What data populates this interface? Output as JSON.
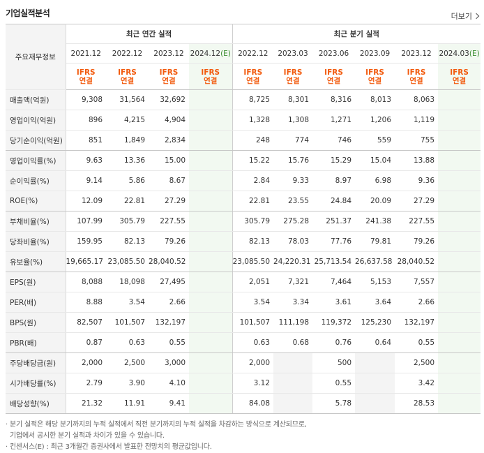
{
  "title": "기업실적분석",
  "more_label": "더보기",
  "header": {
    "row_label": "주요재무정보",
    "annual_group": "최근 연간 실적",
    "quarter_group": "최근 분기 실적",
    "annual_periods": [
      "2021.12",
      "2022.12",
      "2023.12",
      "2024.12"
    ],
    "annual_est_suffix": "(E)",
    "quarter_periods": [
      "2022.12",
      "2023.03",
      "2023.06",
      "2023.09",
      "2023.12",
      "2024.03"
    ],
    "quarter_est_suffix": "(E)",
    "ifrs_line1": "IFRS",
    "ifrs_line2": "연결"
  },
  "rows": [
    {
      "label": "매출액(억원)",
      "annual": [
        "9,308",
        "31,564",
        "32,692",
        ""
      ],
      "quarter": [
        "8,725",
        "8,301",
        "8,316",
        "8,013",
        "8,063",
        ""
      ]
    },
    {
      "label": "영업이익(억원)",
      "annual": [
        "896",
        "4,215",
        "4,904",
        ""
      ],
      "quarter": [
        "1,328",
        "1,308",
        "1,271",
        "1,206",
        "1,119",
        ""
      ]
    },
    {
      "label": "당기순이익(억원)",
      "annual": [
        "851",
        "1,849",
        "2,834",
        ""
      ],
      "quarter": [
        "248",
        "774",
        "746",
        "559",
        "755",
        ""
      ]
    },
    {
      "label": "영업이익률(%)",
      "annual": [
        "9.63",
        "13.36",
        "15.00",
        ""
      ],
      "quarter": [
        "15.22",
        "15.76",
        "15.29",
        "15.04",
        "13.88",
        ""
      ]
    },
    {
      "label": "순이익률(%)",
      "annual": [
        "9.14",
        "5.86",
        "8.67",
        ""
      ],
      "quarter": [
        "2.84",
        "9.33",
        "8.97",
        "6.98",
        "9.36",
        ""
      ]
    },
    {
      "label": "ROE(%)",
      "annual": [
        "12.09",
        "22.81",
        "27.29",
        ""
      ],
      "quarter": [
        "22.81",
        "23.55",
        "24.84",
        "20.09",
        "27.29",
        ""
      ]
    },
    {
      "label": "부채비율(%)",
      "annual": [
        "107.99",
        "305.79",
        "227.55",
        ""
      ],
      "quarter": [
        "305.79",
        "275.28",
        "251.37",
        "241.38",
        "227.55",
        ""
      ]
    },
    {
      "label": "당좌비율(%)",
      "annual": [
        "159.95",
        "82.13",
        "79.26",
        ""
      ],
      "quarter": [
        "82.13",
        "78.03",
        "77.76",
        "79.81",
        "79.26",
        ""
      ]
    },
    {
      "label": "유보율(%)",
      "annual": [
        "19,665.17",
        "23,085.50",
        "28,040.52",
        ""
      ],
      "quarter": [
        "23,085.50",
        "24,220.31",
        "25,713.54",
        "26,637.58",
        "28,040.52",
        ""
      ]
    },
    {
      "label": "EPS(원)",
      "annual": [
        "8,088",
        "18,098",
        "27,495",
        ""
      ],
      "quarter": [
        "2,051",
        "7,321",
        "7,464",
        "5,153",
        "7,557",
        ""
      ]
    },
    {
      "label": "PER(배)",
      "annual": [
        "8.88",
        "3.54",
        "2.66",
        ""
      ],
      "quarter": [
        "3.54",
        "3.34",
        "3.61",
        "3.64",
        "2.66",
        ""
      ]
    },
    {
      "label": "BPS(원)",
      "annual": [
        "82,507",
        "101,507",
        "132,197",
        ""
      ],
      "quarter": [
        "101,507",
        "111,198",
        "119,372",
        "125,230",
        "132,197",
        ""
      ]
    },
    {
      "label": "PBR(배)",
      "annual": [
        "0.87",
        "0.63",
        "0.55",
        ""
      ],
      "quarter": [
        "0.63",
        "0.68",
        "0.76",
        "0.64",
        "0.55",
        ""
      ]
    },
    {
      "label": "주당배당금(원)",
      "annual": [
        "2,000",
        "2,500",
        "3,000",
        ""
      ],
      "quarter": [
        "2,000",
        "",
        "500",
        "",
        "2,500",
        ""
      ]
    },
    {
      "label": "시가배당률(%)",
      "annual": [
        "2.79",
        "3.90",
        "4.10",
        ""
      ],
      "quarter": [
        "3.12",
        "",
        "0.55",
        "",
        "3.42",
        ""
      ]
    },
    {
      "label": "배당성향(%)",
      "annual": [
        "21.32",
        "11.91",
        "9.41",
        ""
      ],
      "quarter": [
        "84.08",
        "",
        "5.78",
        "",
        "28.53",
        ""
      ]
    }
  ],
  "notes": {
    "line1": "분기 실적은 해당 분기까지의 누적 실적에서 직전 분기까지의 누적 실적을 차감하는 방식으로 계산되므로,",
    "line2": "기업에서 공시한 분기 실적과 차이가 있을 수 있습니다.",
    "line3_prefix": "컨센서스",
    "line3_e": "(E)",
    "line3_rest": ": 최근 3개월간 증권사에서 발표한 전망치의 평균값입니다."
  }
}
